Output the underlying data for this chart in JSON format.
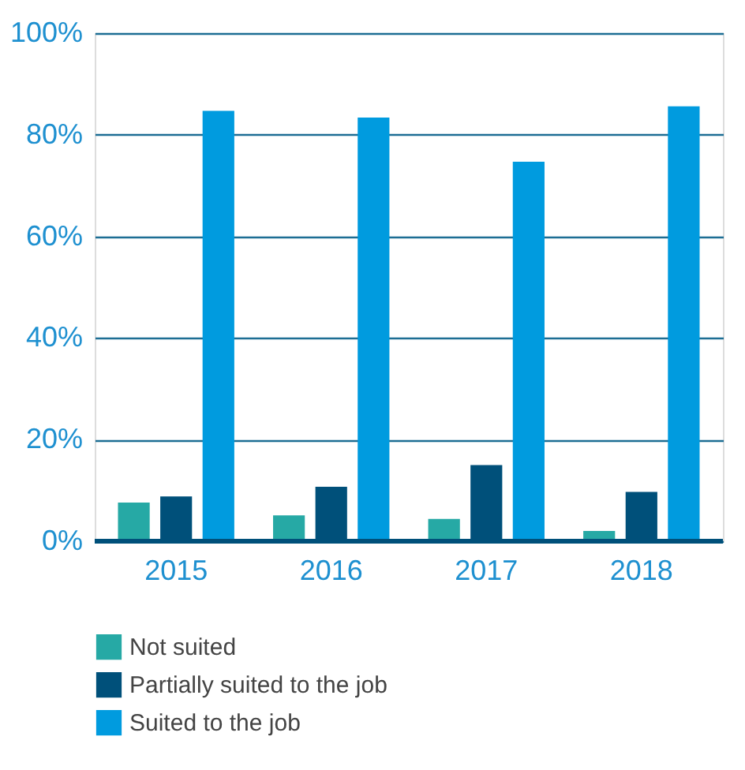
{
  "chart_data": {
    "type": "bar",
    "categories": [
      "2015",
      "2016",
      "2017",
      "2018"
    ],
    "series": [
      {
        "name": "Not suited",
        "color": "#26a9a5",
        "values": [
          7.6,
          5.1,
          4.4,
          2.0
        ]
      },
      {
        "name": "Partially suited to the job",
        "color": "#00507a",
        "values": [
          8.8,
          10.7,
          15.0,
          9.7
        ]
      },
      {
        "name": "Suited to the job",
        "color": "#009bdf",
        "values": [
          84.7,
          83.4,
          74.7,
          85.6
        ]
      }
    ],
    "ylim": [
      0,
      100
    ],
    "yticks": [
      {
        "value": 0,
        "label": "0%"
      },
      {
        "value": 20,
        "label": "20%"
      },
      {
        "value": 40,
        "label": "40%"
      },
      {
        "value": 60,
        "label": "60%"
      },
      {
        "value": 80,
        "label": "80%"
      },
      {
        "value": 100,
        "label": "100%"
      }
    ],
    "grid": "y",
    "legend": "bottom"
  }
}
